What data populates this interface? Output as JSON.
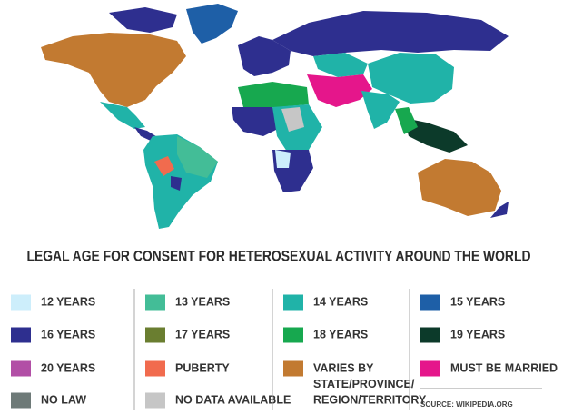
{
  "title": "LEGAL AGE FOR CONSENT FOR HETEROSEXUAL ACTIVITY AROUND THE WORLD",
  "legend": {
    "columns": [
      {
        "items": [
          {
            "label": "12 YEARS",
            "color": "#cdeefb"
          },
          {
            "label": "16 YEARS",
            "color": "#2e2f8f"
          },
          {
            "label": "20 YEARS",
            "color": "#b24fa6"
          },
          {
            "label": "NO LAW",
            "color": "#6e7a78"
          }
        ]
      },
      {
        "items": [
          {
            "label": "13 YEARS",
            "color": "#43bd97"
          },
          {
            "label": "17 YEARS",
            "color": "#6a7e30"
          },
          {
            "label": "PUBERTY",
            "color": "#f16b4e"
          },
          {
            "label": "NO DATA AVAILABLE",
            "color": "#c6c6c6"
          }
        ]
      },
      {
        "items": [
          {
            "label": "14 YEARS",
            "color": "#20b3a8"
          },
          {
            "label": "18 YEARS",
            "color": "#17a84f"
          },
          {
            "lines": [
              "VARIES BY",
              "STATE/PROVINCE/",
              "REGION/TERRITORY"
            ],
            "color": "#c27a31"
          }
        ]
      },
      {
        "items": [
          {
            "label": "15 YEARS",
            "color": "#1e5fa7"
          },
          {
            "label": "19 YEARS",
            "color": "#0c3a2a"
          },
          {
            "label": "MUST BE MARRIED",
            "color": "#e5168b"
          }
        ]
      }
    ]
  },
  "source": "SOURCE: WIKIPEDIA.ORG"
}
